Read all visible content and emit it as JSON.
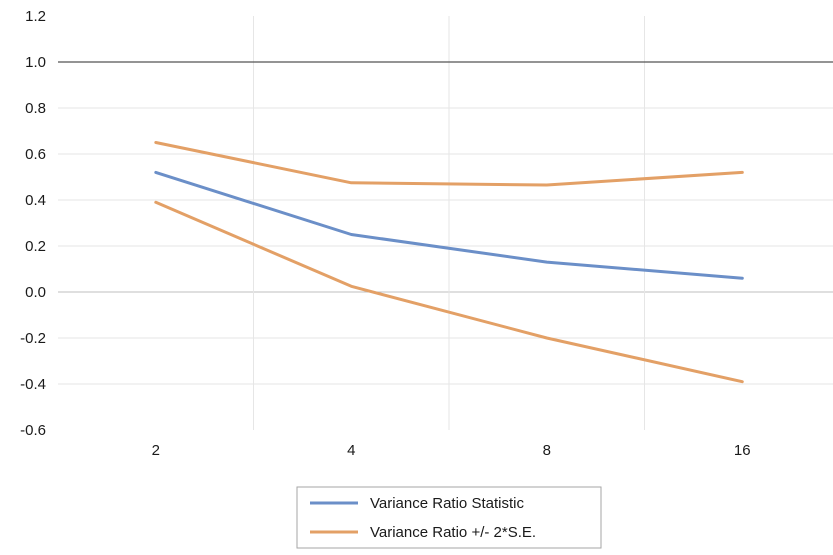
{
  "chart_data": {
    "type": "line",
    "categories": [
      "2",
      "4",
      "8",
      "16"
    ],
    "series": [
      {
        "name": "Variance Ratio Statistic",
        "values": [
          0.52,
          0.25,
          0.13,
          0.06
        ],
        "color": "#6b8fc8"
      },
      {
        "name": "Variance Ratio +/- 2*S.E.",
        "values": [
          0.65,
          0.475,
          0.465,
          0.52
        ],
        "color": "#e3a066",
        "band": "upper"
      },
      {
        "name": "",
        "values": [
          0.39,
          0.025,
          -0.2,
          -0.39
        ],
        "color": "#e3a066",
        "band": "lower"
      }
    ],
    "reference_line": {
      "y": 1.0,
      "color": "#555555"
    },
    "ylim": [
      -0.6,
      1.2
    ],
    "yticks": [
      "1.2",
      "1.0",
      "0.8",
      "0.6",
      "0.4",
      "0.2",
      "0.0",
      "-0.2",
      "-0.4",
      "-0.6"
    ],
    "grid": true,
    "legend": {
      "position": "bottom",
      "entries": [
        {
          "label": "Variance Ratio Statistic",
          "color": "#6b8fc8"
        },
        {
          "label": "Variance Ratio +/- 2*S.E.",
          "color": "#e3a066"
        }
      ]
    }
  }
}
